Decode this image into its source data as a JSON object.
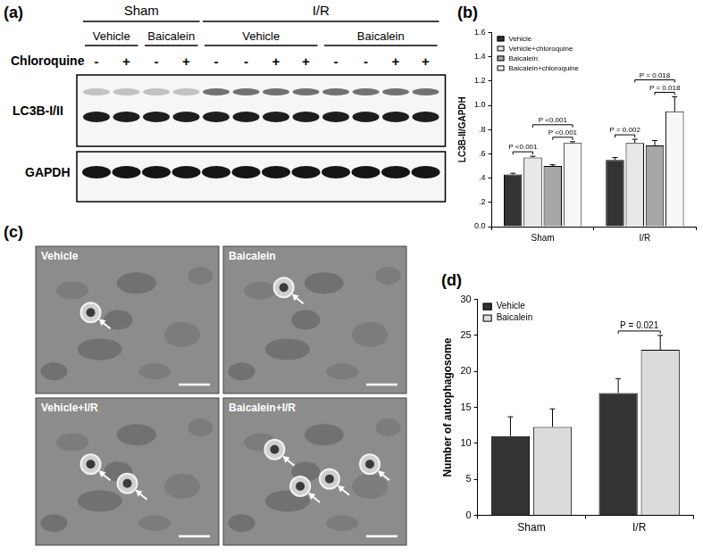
{
  "chart_data": [
    {
      "type": "bar",
      "panel_label": "(b)",
      "y_label": "LC3B-II/GAPDH",
      "categories": [
        "Sham",
        "I/R"
      ],
      "series": [
        {
          "name": "Vehicle",
          "color": "#333333",
          "values": [
            0.43,
            0.55
          ],
          "errors": [
            0.01,
            0.02
          ]
        },
        {
          "name": "Vehicle+chloroquine",
          "color": "#e8e8e8",
          "values": [
            0.57,
            0.69
          ],
          "errors": [
            0.01,
            0.03
          ]
        },
        {
          "name": "Baicalein",
          "color": "#a6a6a6",
          "values": [
            0.5,
            0.67
          ],
          "errors": [
            0.01,
            0.04
          ]
        },
        {
          "name": "Baicalein+chloroquine",
          "color": "#f7f7f7",
          "values": [
            0.69,
            0.95
          ],
          "errors": [
            0.01,
            0.12
          ]
        }
      ],
      "ylim": [
        0,
        1.6
      ],
      "yticks": [
        {
          "value": 0,
          "label": "0.0"
        },
        {
          "value": 0.2,
          "label": ".2"
        },
        {
          "value": 0.4,
          "label": ".4"
        },
        {
          "value": 0.6,
          "label": ".6"
        },
        {
          "value": 0.8,
          "label": ".8"
        },
        {
          "value": 1,
          "label": "1.0"
        },
        1.2,
        1.4,
        1.6
      ],
      "grid": false,
      "legend": "upper left",
      "annotations": [
        {
          "text": "P <0.001",
          "category": "Sham",
          "between": [
            "Vehicle",
            "Vehicle+chloroquine"
          ]
        },
        {
          "text": "P <0.001",
          "category": "Sham",
          "between": [
            "Baicalein",
            "Baicalein+chloroquine"
          ]
        },
        {
          "text": "P <0.001",
          "category": "Sham",
          "between": [
            "Vehicle+chloroquine",
            "Baicalein+chloroquine"
          ]
        },
        {
          "text": "P = 0.002",
          "category": "I/R",
          "between": [
            "Vehicle",
            "Vehicle+chloroquine"
          ]
        },
        {
          "text": "P = 0.018",
          "category": "I/R",
          "between": [
            "Baicalein",
            "Baicalein+chloroquine"
          ]
        },
        {
          "text": "P = 0.018",
          "category": "I/R",
          "between": [
            "Vehicle+chloroquine",
            "Baicalein+chloroquine"
          ]
        }
      ]
    },
    {
      "type": "bar",
      "panel_label": "(d)",
      "y_label": "Number of autophagosome",
      "categories": [
        "Sham",
        "I/R"
      ],
      "series": [
        {
          "name": "Vehicle",
          "color": "#333333",
          "values": [
            11,
            17
          ],
          "errors": [
            2.7,
            2
          ]
        },
        {
          "name": "Baicalein",
          "color": "#dcdcdc",
          "values": [
            12.3,
            23
          ],
          "errors": [
            2.5,
            2
          ]
        }
      ],
      "ylim": [
        0,
        30
      ],
      "yticks": [
        0,
        5,
        10,
        15,
        20,
        25,
        30
      ],
      "grid": false,
      "legend": "upper left",
      "annotations": [
        {
          "text": "P = 0.021",
          "category": "I/R",
          "between": [
            "Vehicle",
            "Baicalein"
          ]
        }
      ]
    }
  ],
  "blot": {
    "panel_label": "(a)",
    "groups": [
      {
        "name": "Sham",
        "subgroups": [
          {
            "name": "Vehicle",
            "chloroquine": [
              "-",
              "+"
            ]
          },
          {
            "name": "Baicalein",
            "chloroquine": [
              "-",
              "+"
            ]
          }
        ]
      },
      {
        "name": "I/R",
        "subgroups": [
          {
            "name": "Vehicle",
            "chloroquine": [
              "-",
              "-",
              "+",
              "+"
            ]
          },
          {
            "name": "Baicalein",
            "chloroquine": [
              "-",
              "-",
              "+",
              "+"
            ]
          }
        ]
      }
    ],
    "treatment_label": "Chloroquine",
    "rows": [
      "LC3B-I/II",
      "GAPDH"
    ]
  },
  "micrographs": {
    "panel_label": "(c)",
    "images": [
      "Vehicle",
      "Baicalein",
      "Vehicle+I/R",
      "Baicalein+I/R"
    ]
  }
}
